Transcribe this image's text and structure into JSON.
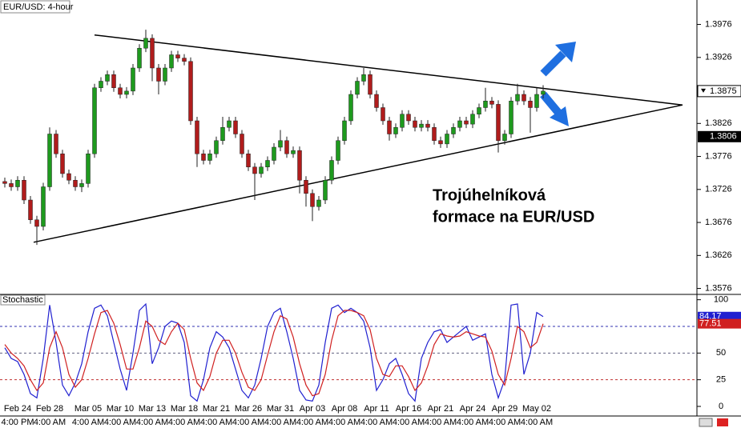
{
  "chart_data": [
    {
      "type": "candlestick",
      "title": "EUR/USD: 4-hour",
      "categories": [
        null,
        null,
        "Feb 24",
        null,
        null,
        null,
        null,
        "Feb 28",
        null,
        null,
        null,
        null,
        null,
        "Mar 05",
        null,
        null,
        null,
        null,
        "Mar 10",
        null,
        null,
        null,
        null,
        "Mar 13",
        null,
        null,
        null,
        null,
        "Mar 18",
        null,
        null,
        null,
        null,
        "Mar 21",
        null,
        null,
        null,
        null,
        "Mar 26",
        null,
        null,
        null,
        null,
        "Mar 31",
        null,
        null,
        null,
        null,
        "Apr 03",
        null,
        null,
        null,
        null,
        "Apr 08",
        null,
        null,
        null,
        null,
        "Apr 11",
        null,
        null,
        null,
        null,
        "Apr 16",
        null,
        null,
        null,
        null,
        "Apr 21",
        null,
        null,
        null,
        null,
        "Apr 24",
        null,
        null,
        null,
        null,
        "Apr 29",
        null,
        null,
        null,
        null,
        "May 02",
        null
      ],
      "times": [
        null,
        null,
        "4:00 PM",
        null,
        null,
        null,
        null,
        "4:00 AM",
        null,
        null,
        null,
        null,
        null,
        "4:00 AM",
        null,
        null,
        null,
        null,
        "4:00 AM",
        null,
        null,
        null,
        null,
        "4:00 AM",
        null,
        null,
        null,
        null,
        "4:00 AM",
        null,
        null,
        null,
        null,
        "4:00 AM",
        null,
        null,
        null,
        null,
        "4:00 AM",
        null,
        null,
        null,
        null,
        "4:00 AM",
        null,
        null,
        null,
        null,
        "4:00 AM",
        null,
        null,
        null,
        null,
        "4:00 AM",
        null,
        null,
        null,
        null,
        "4:00 AM",
        null,
        null,
        null,
        null,
        "4:00 AM",
        null,
        null,
        null,
        null,
        "4:00 AM",
        null,
        null,
        null,
        null,
        "4:00 AM",
        null,
        null,
        null,
        null,
        "4:00 AM",
        null,
        null,
        null,
        null,
        "4:00 AM",
        null
      ],
      "open": [
        1.3738,
        1.3735,
        1.373,
        1.374,
        1.371,
        1.368,
        1.367,
        1.373,
        1.381,
        1.378,
        1.375,
        1.374,
        1.373,
        1.3735,
        1.378,
        1.388,
        1.389,
        1.39,
        1.388,
        1.387,
        1.3875,
        1.391,
        1.394,
        1.3955,
        1.391,
        1.389,
        1.391,
        1.393,
        1.3925,
        1.392,
        1.383,
        1.378,
        1.377,
        1.378,
        1.38,
        1.382,
        1.383,
        1.381,
        1.378,
        1.376,
        1.375,
        1.376,
        1.377,
        1.379,
        1.38,
        1.378,
        1.3785,
        1.374,
        1.372,
        1.37,
        1.371,
        1.374,
        1.377,
        1.38,
        1.383,
        1.387,
        1.389,
        1.39,
        1.387,
        1.385,
        1.383,
        1.381,
        1.382,
        1.384,
        1.383,
        1.382,
        1.3825,
        1.382,
        1.38,
        1.3795,
        1.381,
        1.382,
        1.383,
        1.3825,
        1.384,
        1.385,
        1.386,
        1.3855,
        1.38,
        1.381,
        1.386,
        1.387,
        1.386,
        1.385,
        1.387
      ],
      "high": [
        1.3744,
        1.3741,
        1.3746,
        1.3746,
        1.3716,
        1.3686,
        1.3736,
        1.382,
        1.3816,
        1.3786,
        1.3756,
        1.3746,
        1.3741,
        1.3786,
        1.3886,
        1.3896,
        1.3906,
        1.3906,
        1.3886,
        1.3881,
        1.3916,
        1.3946,
        1.3968,
        1.3961,
        1.3916,
        1.3916,
        1.3936,
        1.3936,
        1.3931,
        1.3926,
        1.3836,
        1.3786,
        1.3786,
        1.3806,
        1.3836,
        1.3836,
        1.3836,
        1.3816,
        1.3786,
        1.3766,
        1.3766,
        1.3776,
        1.3796,
        1.3816,
        1.3806,
        1.3791,
        1.3791,
        1.3746,
        1.3726,
        1.3716,
        1.3746,
        1.3776,
        1.3806,
        1.3836,
        1.3876,
        1.3896,
        1.391,
        1.3906,
        1.3876,
        1.3856,
        1.3836,
        1.3826,
        1.3846,
        1.3846,
        1.3836,
        1.3831,
        1.3831,
        1.3826,
        1.3806,
        1.3816,
        1.3826,
        1.3836,
        1.3836,
        1.3846,
        1.3856,
        1.388,
        1.3866,
        1.3861,
        1.3816,
        1.3866,
        1.3886,
        1.3876,
        1.3866,
        1.388,
        1.3884
      ],
      "low": [
        1.3729,
        1.3724,
        1.3724,
        1.3704,
        1.3674,
        1.3642,
        1.3664,
        1.3724,
        1.3774,
        1.3744,
        1.3734,
        1.3724,
        1.3722,
        1.3729,
        1.3774,
        1.3874,
        1.3884,
        1.3874,
        1.3864,
        1.3864,
        1.3869,
        1.3904,
        1.3934,
        1.389,
        1.387,
        1.3884,
        1.3904,
        1.3919,
        1.3914,
        1.3824,
        1.376,
        1.3764,
        1.3764,
        1.3774,
        1.3794,
        1.3814,
        1.3804,
        1.3774,
        1.3754,
        1.371,
        1.3744,
        1.3754,
        1.3764,
        1.3784,
        1.3774,
        1.3774,
        1.372,
        1.37,
        1.3678,
        1.3694,
        1.3704,
        1.3734,
        1.3764,
        1.3794,
        1.3824,
        1.3864,
        1.3884,
        1.3864,
        1.3844,
        1.3824,
        1.38,
        1.3804,
        1.3814,
        1.3824,
        1.3814,
        1.3814,
        1.3814,
        1.3794,
        1.3789,
        1.3789,
        1.3804,
        1.3814,
        1.3819,
        1.3819,
        1.3834,
        1.3844,
        1.3849,
        1.3782,
        1.3794,
        1.3804,
        1.3854,
        1.3854,
        1.3812,
        1.3844,
        1.3864
      ],
      "close": [
        1.3735,
        1.373,
        1.374,
        1.371,
        1.368,
        1.367,
        1.373,
        1.381,
        1.378,
        1.375,
        1.374,
        1.373,
        1.3735,
        1.378,
        1.388,
        1.389,
        1.39,
        1.388,
        1.387,
        1.3875,
        1.391,
        1.394,
        1.3955,
        1.391,
        1.389,
        1.391,
        1.393,
        1.3925,
        1.392,
        1.383,
        1.378,
        1.377,
        1.378,
        1.38,
        1.382,
        1.383,
        1.381,
        1.378,
        1.376,
        1.375,
        1.376,
        1.377,
        1.379,
        1.38,
        1.378,
        1.3785,
        1.374,
        1.372,
        1.37,
        1.371,
        1.374,
        1.377,
        1.38,
        1.383,
        1.387,
        1.389,
        1.39,
        1.387,
        1.385,
        1.383,
        1.381,
        1.382,
        1.384,
        1.383,
        1.382,
        1.3825,
        1.382,
        1.38,
        1.3795,
        1.381,
        1.382,
        1.383,
        1.3825,
        1.384,
        1.385,
        1.386,
        1.3855,
        1.38,
        1.381,
        1.386,
        1.387,
        1.386,
        1.385,
        1.387,
        1.3875
      ],
      "up_color": "#1e9a1e",
      "down_color": "#b01c1c",
      "ylim": [
        1.3567,
        1.4013
      ],
      "yticks": [
        1.3576,
        1.3626,
        1.3676,
        1.3726,
        1.3776,
        1.3826,
        1.3926,
        1.3976
      ],
      "price_markers": [
        1.3806
      ],
      "trendlines": [
        {
          "x": [
            14,
            105.75
          ],
          "y": [
            1.396,
            1.3854
          ]
        },
        {
          "x": [
            4.5,
            105.75
          ],
          "y": [
            1.3646,
            1.3854
          ]
        }
      ],
      "annotation": [
        "Trojúhelníková",
        "formace na EUR/USD"
      ]
    },
    {
      "type": "line",
      "title": "Stochastic",
      "series": [
        {
          "color": "#2020d0",
          "values": [
            55,
            45,
            42,
            30,
            12,
            8,
            45,
            95,
            60,
            20,
            10,
            22,
            40,
            70,
            92,
            95,
            85,
            60,
            35,
            15,
            50,
            90,
            96,
            40,
            55,
            75,
            80,
            78,
            60,
            10,
            5,
            25,
            55,
            70,
            65,
            55,
            35,
            15,
            8,
            20,
            45,
            75,
            88,
            92,
            70,
            45,
            15,
            6,
            5,
            20,
            60,
            92,
            95,
            88,
            92,
            88,
            80,
            55,
            15,
            25,
            40,
            45,
            30,
            12,
            5,
            45,
            60,
            70,
            72,
            60,
            65,
            70,
            75,
            62,
            65,
            68,
            30,
            8,
            25,
            95,
            96,
            30,
            50,
            88,
            84.17
          ]
        },
        {
          "color": "#d02020",
          "values": [
            58,
            50,
            45,
            38,
            25,
            15,
            22,
            55,
            70,
            55,
            30,
            18,
            25,
            45,
            68,
            88,
            90,
            78,
            58,
            35,
            35,
            55,
            80,
            75,
            62,
            58,
            70,
            78,
            72,
            45,
            22,
            15,
            28,
            50,
            62,
            62,
            50,
            32,
            18,
            15,
            25,
            48,
            70,
            85,
            82,
            65,
            40,
            20,
            10,
            12,
            30,
            62,
            85,
            90,
            90,
            88,
            85,
            72,
            45,
            30,
            28,
            38,
            38,
            28,
            15,
            22,
            38,
            58,
            68,
            66,
            65,
            66,
            70,
            68,
            66,
            65,
            52,
            30,
            20,
            45,
            75,
            70,
            55,
            60,
            77.51
          ]
        }
      ],
      "levels": [
        {
          "value": 75,
          "color": "#3030b0"
        },
        {
          "value": 50,
          "color": "#606080"
        },
        {
          "value": 25,
          "color": "#c03030"
        }
      ],
      "ylim": [
        -7.5,
        105
      ],
      "yticks": [
        0,
        25,
        50,
        100
      ]
    }
  ]
}
